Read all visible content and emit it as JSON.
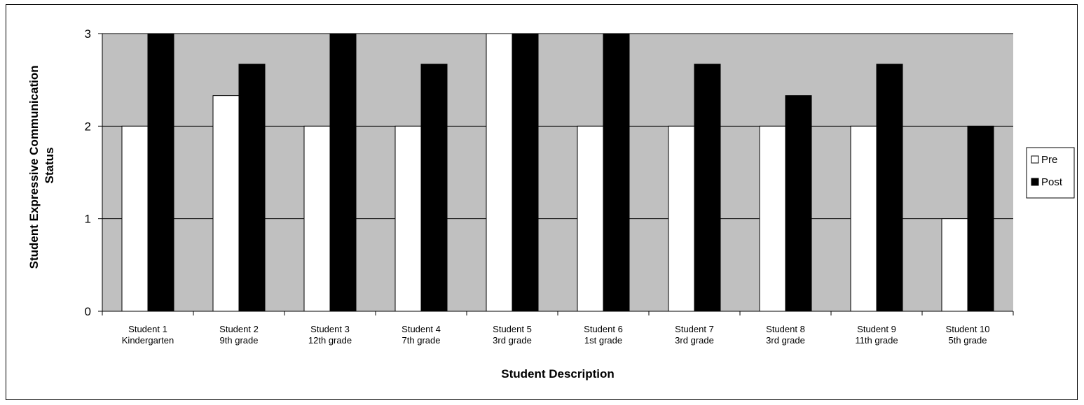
{
  "chart_data": {
    "type": "bar",
    "xlabel": "Student Description",
    "ylabel_lines": [
      "Student Expressive Communication",
      "Status"
    ],
    "ylim": [
      0,
      3
    ],
    "yticks": [
      "0",
      "1",
      "2",
      "3"
    ],
    "grid": true,
    "legend_placement": "right",
    "categories": [
      [
        "Student 1",
        "Kindergarten"
      ],
      [
        "Student 2",
        "9th grade"
      ],
      [
        "Student 3",
        "12th grade"
      ],
      [
        "Student 4",
        "7th grade"
      ],
      [
        "Student 5",
        "3rd grade"
      ],
      [
        "Student 6",
        "1st grade"
      ],
      [
        "Student 7",
        "3rd grade"
      ],
      [
        "Student 8",
        "3rd grade"
      ],
      [
        "Student 9",
        "11th grade"
      ],
      [
        "Student 10",
        "5th grade"
      ]
    ],
    "series": [
      {
        "name": "Pre",
        "color": "#ffffff",
        "values": [
          2,
          2.33,
          2,
          2,
          3,
          2,
          2,
          2,
          2,
          1
        ]
      },
      {
        "name": "Post",
        "color": "#000000",
        "values": [
          3,
          2.67,
          3,
          2.67,
          3,
          3,
          2.67,
          2.33,
          2.67,
          2
        ]
      }
    ],
    "plot_background": "#c0c0c0"
  }
}
